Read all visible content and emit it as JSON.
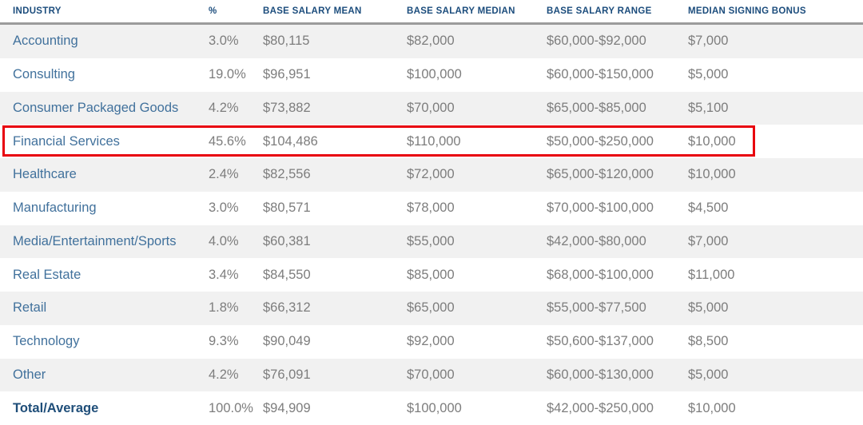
{
  "table": {
    "columns": [
      {
        "key": "industry",
        "label": "INDUSTRY"
      },
      {
        "key": "pct",
        "label": "%"
      },
      {
        "key": "mean",
        "label": "BASE SALARY MEAN"
      },
      {
        "key": "median",
        "label": "BASE SALARY MEDIAN"
      },
      {
        "key": "range",
        "label": "BASE SALARY RANGE"
      },
      {
        "key": "bonus",
        "label": "MEDIAN SIGNING BONUS"
      }
    ],
    "rows": [
      {
        "industry": "Accounting",
        "pct": "3.0%",
        "mean": "$80,115",
        "median": "$82,000",
        "range": "$60,000-$92,000",
        "bonus": "$7,000",
        "highlighted": false,
        "emphasis": false
      },
      {
        "industry": "Consulting",
        "pct": "19.0%",
        "mean": "$96,951",
        "median": "$100,000",
        "range": "$60,000-$150,000",
        "bonus": "$5,000",
        "highlighted": false,
        "emphasis": false
      },
      {
        "industry": "Consumer Packaged Goods",
        "pct": "4.2%",
        "mean": "$73,882",
        "median": "$70,000",
        "range": "$65,000-$85,000",
        "bonus": "$5,100",
        "highlighted": false,
        "emphasis": false
      },
      {
        "industry": "Financial Services",
        "pct": "45.6%",
        "mean": "$104,486",
        "median": "$110,000",
        "range": "$50,000-$250,000",
        "bonus": "$10,000",
        "highlighted": true,
        "emphasis": false
      },
      {
        "industry": "Healthcare",
        "pct": "2.4%",
        "mean": "$82,556",
        "median": "$72,000",
        "range": "$65,000-$120,000",
        "bonus": "$10,000",
        "highlighted": false,
        "emphasis": false
      },
      {
        "industry": "Manufacturing",
        "pct": "3.0%",
        "mean": "$80,571",
        "median": "$78,000",
        "range": "$70,000-$100,000",
        "bonus": "$4,500",
        "highlighted": false,
        "emphasis": false
      },
      {
        "industry": "Media/Entertainment/Sports",
        "pct": "4.0%",
        "mean": "$60,381",
        "median": "$55,000",
        "range": "$42,000-$80,000",
        "bonus": "$7,000",
        "highlighted": false,
        "emphasis": false
      },
      {
        "industry": "Real Estate",
        "pct": "3.4%",
        "mean": "$84,550",
        "median": "$85,000",
        "range": "$68,000-$100,000",
        "bonus": "$11,000",
        "highlighted": false,
        "emphasis": false
      },
      {
        "industry": "Retail",
        "pct": "1.8%",
        "mean": "$66,312",
        "median": "$65,000",
        "range": "$55,000-$77,500",
        "bonus": "$5,000",
        "highlighted": false,
        "emphasis": false
      },
      {
        "industry": "Technology",
        "pct": "9.3%",
        "mean": "$90,049",
        "median": "$92,000",
        "range": "$50,600-$137,000",
        "bonus": "$8,500",
        "highlighted": false,
        "emphasis": false
      },
      {
        "industry": "Other",
        "pct": "4.2%",
        "mean": "$76,091",
        "median": "$70,000",
        "range": "$60,000-$130,000",
        "bonus": "$5,000",
        "highlighted": false,
        "emphasis": false
      },
      {
        "industry": "Total/Average",
        "pct": "100.0%",
        "mean": "$94,909",
        "median": "$100,000",
        "range": "$42,000-$250,000",
        "bonus": "$10,000",
        "highlighted": false,
        "emphasis": true
      }
    ],
    "colors": {
      "header_text": "#1b4c7c",
      "industry_text": "#41719c",
      "value_text": "#7d7d7d",
      "zebra_bg": "#f1f1f1",
      "header_rule": "#9b9b9b",
      "highlight_border": "#e8000d",
      "total_text": "#1f4e79"
    }
  },
  "chart_data": {
    "type": "table",
    "title": "",
    "columns": [
      "INDUSTRY",
      "%",
      "BASE SALARY MEAN",
      "BASE SALARY MEDIAN",
      "BASE SALARY RANGE",
      "MEDIAN SIGNING BONUS"
    ],
    "rows": [
      [
        "Accounting",
        "3.0%",
        "$80,115",
        "$82,000",
        "$60,000-$92,000",
        "$7,000"
      ],
      [
        "Consulting",
        "19.0%",
        "$96,951",
        "$100,000",
        "$60,000-$150,000",
        "$5,000"
      ],
      [
        "Consumer Packaged Goods",
        "4.2%",
        "$73,882",
        "$70,000",
        "$65,000-$85,000",
        "$5,100"
      ],
      [
        "Financial Services",
        "45.6%",
        "$104,486",
        "$110,000",
        "$50,000-$250,000",
        "$10,000"
      ],
      [
        "Healthcare",
        "2.4%",
        "$82,556",
        "$72,000",
        "$65,000-$120,000",
        "$10,000"
      ],
      [
        "Manufacturing",
        "3.0%",
        "$80,571",
        "$78,000",
        "$70,000-$100,000",
        "$4,500"
      ],
      [
        "Media/Entertainment/Sports",
        "4.0%",
        "$60,381",
        "$55,000",
        "$42,000-$80,000",
        "$7,000"
      ],
      [
        "Real Estate",
        "3.4%",
        "$84,550",
        "$85,000",
        "$68,000-$100,000",
        "$11,000"
      ],
      [
        "Retail",
        "1.8%",
        "$66,312",
        "$65,000",
        "$55,000-$77,500",
        "$5,000"
      ],
      [
        "Technology",
        "9.3%",
        "$90,049",
        "$92,000",
        "$50,600-$137,000",
        "$8,500"
      ],
      [
        "Other",
        "4.2%",
        "$76,091",
        "$70,000",
        "$60,000-$130,000",
        "$5,000"
      ],
      [
        "Total/Average",
        "100.0%",
        "$94,909",
        "$100,000",
        "$42,000-$250,000",
        "$10,000"
      ]
    ],
    "highlighted_row": "Financial Services"
  }
}
